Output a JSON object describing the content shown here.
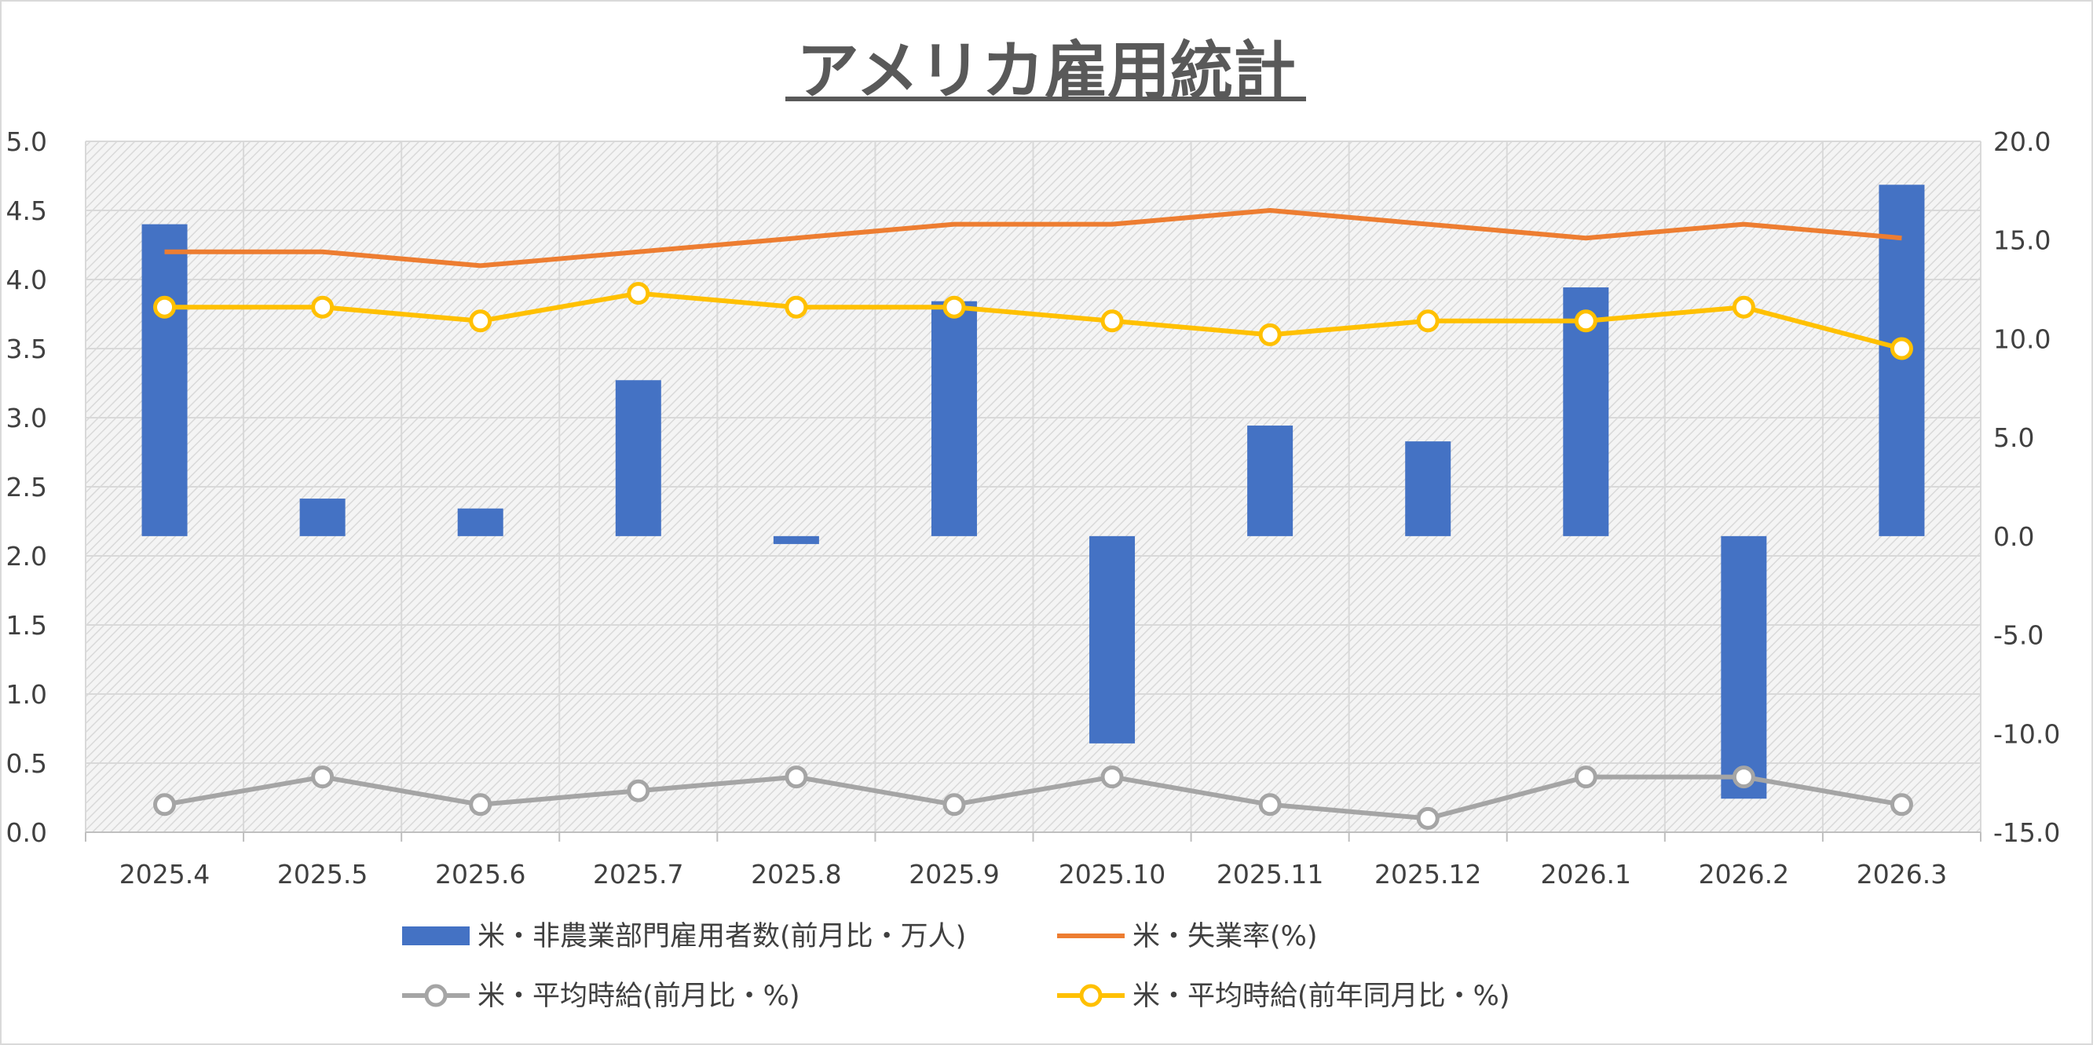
{
  "chart_data": {
    "type": "bar",
    "title": "アメリカ雇用統計",
    "categories": [
      "2025.4",
      "2025.5",
      "2025.6",
      "2025.7",
      "2025.8",
      "2025.9",
      "2025.10",
      "2025.11",
      "2025.12",
      "2026.1",
      "2026.2",
      "2026.3"
    ],
    "left_axis": {
      "min": 0.0,
      "max": 5.0,
      "step": 0.5,
      "tick_labels": [
        "0.0",
        "0.5",
        "1.0",
        "1.5",
        "2.0",
        "2.5",
        "3.0",
        "3.5",
        "4.0",
        "4.5",
        "5.0"
      ]
    },
    "right_axis": {
      "min": -15.0,
      "max": 20.0,
      "step": 5.0,
      "tick_labels": [
        "-15.0",
        "-10.0",
        "-5.0",
        "0.0",
        "5.0",
        "10.0",
        "15.0",
        "20.0"
      ]
    },
    "grid": true,
    "legend_position": "bottom",
    "series": [
      {
        "name": "米・非農業部門雇用者数(前月比・万人)",
        "type": "bar",
        "axis": "right",
        "color": "#4472C4",
        "values": [
          15.8,
          1.9,
          1.4,
          7.9,
          -0.4,
          11.9,
          -10.5,
          5.6,
          4.8,
          12.6,
          -13.3,
          17.8
        ]
      },
      {
        "name": "米・失業率(%)",
        "type": "line",
        "axis": "left",
        "color": "#ED7D31",
        "marker": false,
        "values": [
          4.2,
          4.2,
          4.1,
          4.2,
          4.3,
          4.4,
          4.4,
          4.5,
          4.4,
          4.3,
          4.4,
          4.3
        ]
      },
      {
        "name": "米・平均時給(前月比・%)",
        "type": "line",
        "axis": "left",
        "color": "#A5A5A5",
        "marker": true,
        "values": [
          0.2,
          0.4,
          0.2,
          0.3,
          0.4,
          0.2,
          0.4,
          0.2,
          0.1,
          0.4,
          0.4,
          0.2
        ]
      },
      {
        "name": "米・平均時給(前年同月比・%)",
        "type": "line",
        "axis": "left",
        "color": "#FFC000",
        "marker": true,
        "values": [
          3.8,
          3.8,
          3.7,
          3.9,
          3.8,
          3.8,
          3.7,
          3.6,
          3.7,
          3.7,
          3.8,
          3.5
        ]
      }
    ]
  }
}
